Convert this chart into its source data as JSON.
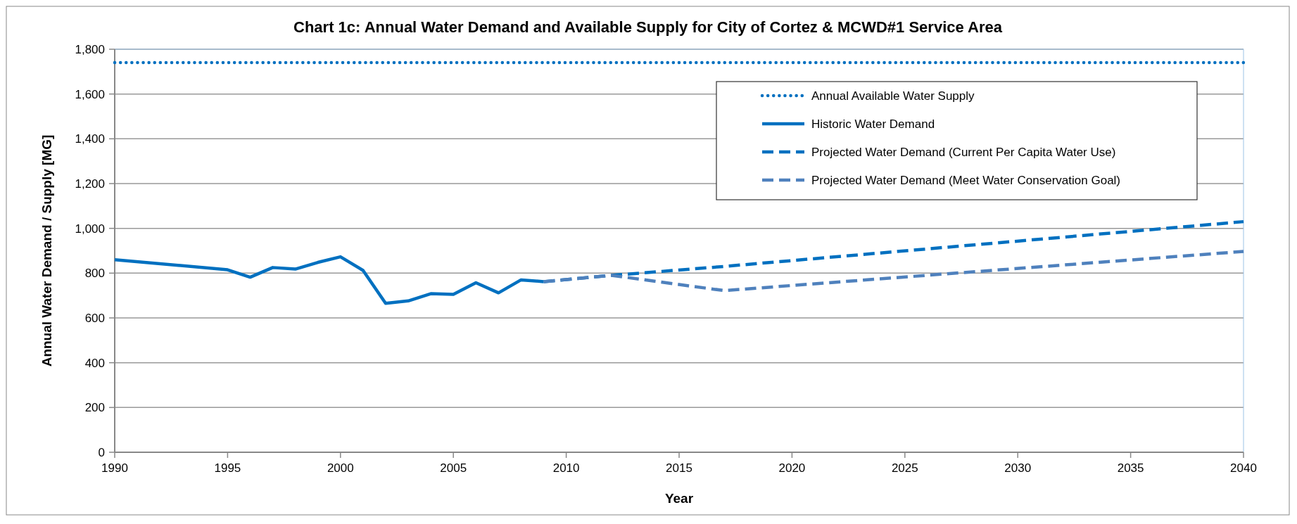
{
  "chart_data": {
    "type": "line",
    "title": "Chart 1c: Annual Water Demand and Available Supply for City of Cortez & MCWD#1 Service Area",
    "xlabel": "Year",
    "ylabel": "Annual Water Demand / Supply [MG]",
    "xlim": [
      1990,
      2040
    ],
    "xticks": [
      1990,
      1995,
      2000,
      2005,
      2010,
      2015,
      2020,
      2025,
      2030,
      2035,
      2040
    ],
    "ylim": [
      0,
      1800
    ],
    "yticks": [
      {
        "value": 0,
        "label": "0"
      },
      {
        "value": 200,
        "label": "200"
      },
      {
        "value": 400,
        "label": "400"
      },
      {
        "value": 600,
        "label": "600"
      },
      {
        "value": 800,
        "label": "800"
      },
      {
        "value": 1000,
        "label": "1,000"
      },
      {
        "value": 1200,
        "label": "1,200"
      },
      {
        "value": 1400,
        "label": "1,400"
      },
      {
        "value": 1600,
        "label": "1,600"
      },
      {
        "value": 1800,
        "label": "1,800"
      }
    ],
    "grid": "y",
    "legend": "top right",
    "series": [
      {
        "name": "Annual Available Water Supply",
        "color": "#0070c0",
        "line_style": "dotted",
        "x": [
          1990,
          2040
        ],
        "values": [
          1740,
          1740
        ]
      },
      {
        "name": "Historic Water Demand",
        "color": "#0070c0",
        "line_style": "solid",
        "x": [
          1990,
          1995,
          1996,
          1997,
          1998,
          1999,
          2000,
          2001,
          2002,
          2003,
          2004,
          2005,
          2006,
          2007,
          2008,
          2009
        ],
        "values": [
          860,
          815,
          782,
          825,
          818,
          848,
          873,
          812,
          665,
          676,
          708,
          705,
          757,
          712,
          770,
          762
        ]
      },
      {
        "name": "Projected Water Demand (Current Per Capita Water Use)",
        "color": "#0070c0",
        "line_style": "dashed",
        "x": [
          2009,
          2012,
          2017,
          2040
        ],
        "values": [
          762,
          790,
          830,
          1030
        ]
      },
      {
        "name": "Projected Water Demand (Meet Water Conservation Goal)",
        "color": "#4f81bd",
        "line_style": "dashed",
        "x": [
          2009,
          2012,
          2017,
          2040
        ],
        "values": [
          762,
          790,
          722,
          897
        ]
      }
    ]
  }
}
